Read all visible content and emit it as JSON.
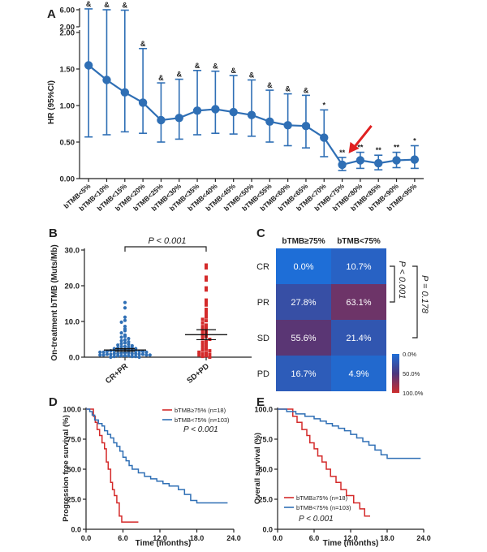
{
  "chart_data": [
    {
      "panel": "A",
      "type": "scatter",
      "subtype": "forest plot with error bars",
      "ylabel": "HR (95%CI)",
      "y_ticks": [
        "0.00",
        "0.50",
        "1.00",
        "1.50",
        "2.00"
      ],
      "y_break_ticks": [
        "2.00",
        "6.00"
      ],
      "ylim": [
        0,
        2.0
      ],
      "categories": [
        "bTMB<5%",
        "bTMB<10%",
        "bTMB<15%",
        "bTMB<20%",
        "bTMB<25%",
        "bTMB<30%",
        "bTMB<35%",
        "bTMB<40%",
        "bTMB<45%",
        "bTMB<50%",
        "bTMB<55%",
        "bTMB<60%",
        "bTMB<65%",
        "bTMB<70%",
        "bTMB<75%",
        "bTMB<80%",
        "bTMB<85%",
        "bTMB<90%",
        "bTMB<95%"
      ],
      "hr": [
        1.55,
        1.35,
        1.18,
        1.04,
        0.8,
        0.83,
        0.93,
        0.95,
        0.91,
        0.87,
        0.78,
        0.73,
        0.72,
        0.56,
        0.19,
        0.25,
        0.21,
        0.25,
        0.26
      ],
      "lower": [
        0.57,
        0.6,
        0.64,
        0.62,
        0.5,
        0.54,
        0.6,
        0.62,
        0.61,
        0.58,
        0.5,
        0.45,
        0.42,
        0.3,
        0.11,
        0.14,
        0.12,
        0.15,
        0.14
      ],
      "upper": [
        6.2,
        6.0,
        5.9,
        1.78,
        1.31,
        1.36,
        1.48,
        1.47,
        1.41,
        1.35,
        1.21,
        1.16,
        1.14,
        0.94,
        0.29,
        0.36,
        0.32,
        0.36,
        0.45
      ],
      "annotations": [
        "&",
        "&",
        "&",
        "&",
        "&",
        "&",
        "&",
        "&",
        "&",
        "&",
        "&",
        "&",
        "&",
        "*",
        "**",
        "**",
        "**",
        "**",
        "*"
      ],
      "arrow_target": "bTMB<75%"
    },
    {
      "panel": "B",
      "type": "scatter",
      "ylabel": "On-treatment bTMB (Muts/Mb)",
      "y_ticks": [
        "0.0",
        "10.0",
        "20.0",
        "30.0"
      ],
      "ylim": [
        0,
        30
      ],
      "categories": [
        "CR+PR",
        "SD+PD"
      ],
      "pvalue": "P < 0.001",
      "mean": [
        2.0,
        6.3
      ],
      "sem": [
        0.4,
        1.4
      ],
      "groups": [
        {
          "name": "CR+PR",
          "values": [
            15.3,
            13.8,
            11.2,
            10.3,
            9.8,
            8.6,
            7.9,
            7.4,
            6.8,
            6.2,
            5.8,
            5.6,
            5.2,
            4.8,
            4.6,
            4.3,
            4.0,
            3.8,
            3.6,
            3.4,
            3.2,
            3.0,
            3.0,
            2.8,
            2.6,
            2.6,
            2.4,
            2.4,
            2.2,
            2.2,
            2.0,
            2.0,
            2.0,
            1.8,
            1.8,
            1.8,
            1.6,
            1.6,
            1.6,
            1.4,
            1.4,
            1.4,
            1.2,
            1.2,
            1.2,
            1.0,
            1.0,
            1.0,
            1.0,
            0.8,
            0.8,
            0.8,
            0.8,
            0.6,
            0.6,
            0.6,
            0.6,
            0.4,
            0.4,
            0.4,
            0.4,
            0.2,
            0.2,
            0.2,
            0.0,
            0.0
          ]
        },
        {
          "name": "SD+PD",
          "values": [
            25.8,
            25.0,
            22.4,
            21.6,
            19.4,
            18.8,
            16.0,
            15.2,
            14.6,
            13.4,
            12.8,
            12.0,
            11.2,
            10.6,
            10.2,
            9.6,
            9.0,
            8.6,
            8.2,
            7.8,
            7.4,
            7.0,
            6.6,
            6.2,
            5.8,
            5.4,
            5.0,
            4.6,
            4.2,
            3.8,
            3.4,
            3.0,
            2.6,
            2.2,
            2.0,
            1.8,
            1.4,
            1.2,
            1.0,
            0.8,
            0.6,
            0.4,
            0.2,
            0.0
          ]
        }
      ]
    },
    {
      "panel": "C",
      "type": "heatmap",
      "columns": [
        "bTMB≥75%",
        "bTMB<75%"
      ],
      "rows": [
        "CR",
        "PR",
        "SD",
        "PD"
      ],
      "values": [
        [
          0.0,
          10.7
        ],
        [
          27.8,
          63.1
        ],
        [
          55.6,
          21.4
        ],
        [
          16.7,
          4.9
        ]
      ],
      "labels": [
        [
          "0.0%",
          "10.7%"
        ],
        [
          "27.8%",
          "63.1%"
        ],
        [
          "55.6%",
          "21.4%"
        ],
        [
          "16.7%",
          "4.9%"
        ]
      ],
      "colorbar_labels": [
        "0.0%",
        "50.0%",
        "100.0%"
      ],
      "pvalues": [
        "P < 0.001",
        "P = 0.178"
      ]
    },
    {
      "panel": "D",
      "type": "line",
      "subtype": "kaplan-meier",
      "ylabel": "Progression free survival (%)",
      "xlabel": "Time (months)",
      "x_ticks": [
        "0.0",
        "6.0",
        "12.0",
        "18.0",
        "24.0"
      ],
      "y_ticks": [
        "0.0",
        "25.0",
        "50.0",
        "75.0",
        "100.0"
      ],
      "xlim": [
        0,
        24
      ],
      "ylim": [
        0,
        100
      ],
      "legend": [
        "bTMB≥75% (n=18)",
        "bTMB<75% (n=103)"
      ],
      "pvalue": "P < 0.001",
      "series": [
        {
          "name": "bTMB≥75% (n=18)",
          "color": "#d42a2a",
          "x": [
            0,
            1.2,
            1.2,
            1.5,
            1.5,
            1.8,
            1.8,
            2.2,
            2.2,
            2.6,
            2.6,
            3.0,
            3.0,
            3.3,
            3.3,
            3.6,
            3.6,
            4.0,
            4.0,
            4.3,
            4.3,
            4.6,
            4.6,
            5.0,
            5.0,
            5.4,
            5.4,
            5.8,
            5.8,
            8.5
          ],
          "y": [
            100,
            100,
            94,
            94,
            89,
            89,
            83,
            83,
            78,
            78,
            72,
            72,
            67,
            67,
            56,
            56,
            50,
            50,
            39,
            39,
            33,
            33,
            28,
            28,
            22,
            22,
            11,
            11,
            6,
            6
          ]
        },
        {
          "name": "bTMB<75% (n=103)",
          "color": "#2f6fb5",
          "x": [
            0,
            0.6,
            0.6,
            1.0,
            1.0,
            1.4,
            1.4,
            2.0,
            2.0,
            2.6,
            2.6,
            3.0,
            3.0,
            3.5,
            3.5,
            4.0,
            4.0,
            4.5,
            4.5,
            5.0,
            5.0,
            5.5,
            5.5,
            6.0,
            6.0,
            6.5,
            6.5,
            7.0,
            7.0,
            7.5,
            7.5,
            8.5,
            8.5,
            9.5,
            9.5,
            10.5,
            10.5,
            11.5,
            11.5,
            12.5,
            12.5,
            13.5,
            13.5,
            15.0,
            15.0,
            16.0,
            16.0,
            17.0,
            17.0,
            18.0,
            18.0,
            23.0
          ],
          "y": [
            100,
            100,
            98,
            98,
            95,
            95,
            91,
            91,
            88,
            88,
            86,
            86,
            82,
            82,
            79,
            79,
            76,
            76,
            72,
            72,
            69,
            69,
            65,
            65,
            60,
            60,
            57,
            57,
            53,
            53,
            50,
            50,
            47,
            47,
            44,
            44,
            42,
            42,
            40,
            40,
            38,
            38,
            36,
            36,
            33,
            33,
            29,
            29,
            24,
            24,
            22,
            22
          ]
        }
      ]
    },
    {
      "panel": "E",
      "type": "line",
      "subtype": "kaplan-meier",
      "ylabel": "Overall survival (%)",
      "xlabel": "Time (months)",
      "x_ticks": [
        "0.0",
        "6.0",
        "12.0",
        "18.0",
        "24.0"
      ],
      "y_ticks": [
        "0.0",
        "25.0",
        "50.0",
        "75.0",
        "100.0"
      ],
      "xlim": [
        0,
        24
      ],
      "ylim": [
        0,
        100
      ],
      "legend": [
        "bTMB≥75% (n=18)",
        "bTMB<75% (n=103)"
      ],
      "pvalue": "P < 0.001",
      "series": [
        {
          "name": "bTMB≥75% (n=18)",
          "color": "#d42a2a",
          "x": [
            0,
            2.5,
            2.5,
            3.2,
            3.2,
            4.0,
            4.0,
            4.8,
            4.8,
            5.3,
            5.3,
            6.0,
            6.0,
            6.6,
            6.6,
            7.3,
            7.3,
            8.0,
            8.0,
            8.7,
            8.7,
            9.6,
            9.6,
            10.4,
            10.4,
            11.3,
            11.3,
            12.5,
            12.5,
            13.5,
            13.5,
            14.3,
            14.3,
            15.2
          ],
          "y": [
            100,
            100,
            94,
            94,
            89,
            89,
            83,
            83,
            78,
            78,
            72,
            72,
            67,
            67,
            61,
            61,
            56,
            56,
            50,
            50,
            44,
            44,
            39,
            39,
            33,
            33,
            28,
            28,
            22,
            22,
            17,
            17,
            11,
            11
          ]
        },
        {
          "name": "bTMB<75% (n=103)",
          "color": "#2f6fb5",
          "x": [
            0,
            1.5,
            1.5,
            3.0,
            3.0,
            4.5,
            4.5,
            6.0,
            6.0,
            7.0,
            7.0,
            8.0,
            8.0,
            9.0,
            9.0,
            10.0,
            10.0,
            11.0,
            11.0,
            12.0,
            12.0,
            13.0,
            13.0,
            14.0,
            14.0,
            15.0,
            15.0,
            16.0,
            16.0,
            17.0,
            17.0,
            18.0,
            18.0,
            23.5
          ],
          "y": [
            100,
            100,
            98,
            98,
            96,
            96,
            94,
            94,
            92,
            92,
            90,
            90,
            88,
            88,
            86,
            86,
            84,
            84,
            82,
            82,
            79,
            79,
            76,
            76,
            73,
            73,
            70,
            70,
            66,
            66,
            62,
            62,
            59,
            59
          ]
        }
      ]
    }
  ],
  "panels": [
    "A",
    "B",
    "C",
    "D",
    "E"
  ]
}
